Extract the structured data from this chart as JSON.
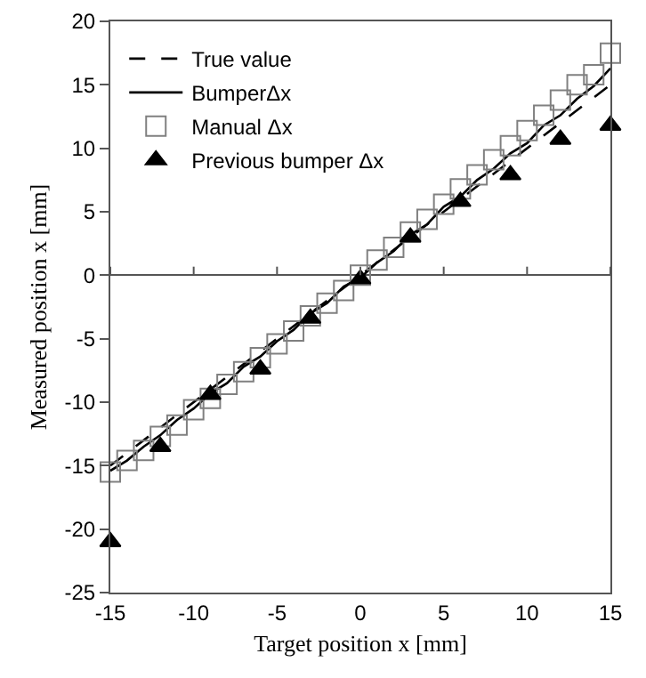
{
  "chart_data": {
    "type": "line",
    "xlabel": "Target position x [mm]",
    "ylabel": "Measured position x [mm]",
    "xlim": [
      -15,
      15
    ],
    "xticks": [
      -15,
      -10,
      -5,
      0,
      5,
      10,
      15
    ],
    "ylim": [
      -25,
      20
    ],
    "yticks": [
      -25,
      -20,
      -15,
      -10,
      -5,
      0,
      5,
      10,
      15,
      20
    ],
    "legend": "top left",
    "series": [
      {
        "name": "True value",
        "line_style": "dashed",
        "marker": "none",
        "color": "#000000",
        "x": [
          -15,
          15
        ],
        "values": [
          -15,
          15
        ]
      },
      {
        "name": "BumperΔx",
        "line_style": "solid",
        "marker": "none",
        "color": "#000000",
        "x": [
          -15,
          -14,
          -13,
          -12,
          -11,
          -10,
          -9,
          -8,
          -7,
          -6,
          -5,
          -4,
          -3,
          -2,
          -1,
          0,
          1,
          2,
          3,
          4,
          5,
          6,
          7,
          8,
          9,
          10,
          11,
          12,
          13,
          14,
          15
        ],
        "values": [
          -15.4,
          -14.6,
          -13.5,
          -12.6,
          -11.4,
          -10.5,
          -9.3,
          -8.5,
          -7.2,
          -6.4,
          -5.2,
          -4.3,
          -3.0,
          -2.2,
          -0.9,
          -0.2,
          1.0,
          1.9,
          3.2,
          4.0,
          5.4,
          6.2,
          7.5,
          8.4,
          9.6,
          10.4,
          11.8,
          12.6,
          13.9,
          14.9,
          16.3
        ]
      },
      {
        "name": "Manual Δx",
        "type": "scatter",
        "marker": "square",
        "color": "#808080",
        "x": [
          -15,
          -14,
          -13,
          -12,
          -11,
          -10,
          -9,
          -8,
          -7,
          -6,
          -5,
          -4,
          -3,
          -2,
          -1,
          0,
          1,
          2,
          3,
          4,
          5,
          6,
          7,
          8,
          9,
          10,
          11,
          12,
          13,
          14,
          15
        ],
        "values": [
          -15.5,
          -14.6,
          -13.8,
          -12.7,
          -11.8,
          -10.6,
          -9.7,
          -8.6,
          -7.6,
          -6.5,
          -5.4,
          -4.4,
          -3.2,
          -2.2,
          -1.2,
          0,
          1.2,
          2.2,
          3.4,
          4.4,
          5.6,
          6.8,
          7.9,
          9.1,
          10.2,
          11.4,
          12.6,
          13.8,
          15.0,
          15.8,
          17.5
        ]
      },
      {
        "name": "Previous bumper Δx",
        "type": "scatter",
        "marker": "triangle",
        "color": "#000000",
        "x": [
          -15,
          -12,
          -9,
          -6,
          -3,
          0,
          3,
          6,
          9,
          12,
          15
        ],
        "values": [
          -21,
          -13.5,
          -9.4,
          -7.4,
          -3.4,
          -0.3,
          3.0,
          5.8,
          7.9,
          10.7,
          11.8
        ]
      }
    ]
  }
}
